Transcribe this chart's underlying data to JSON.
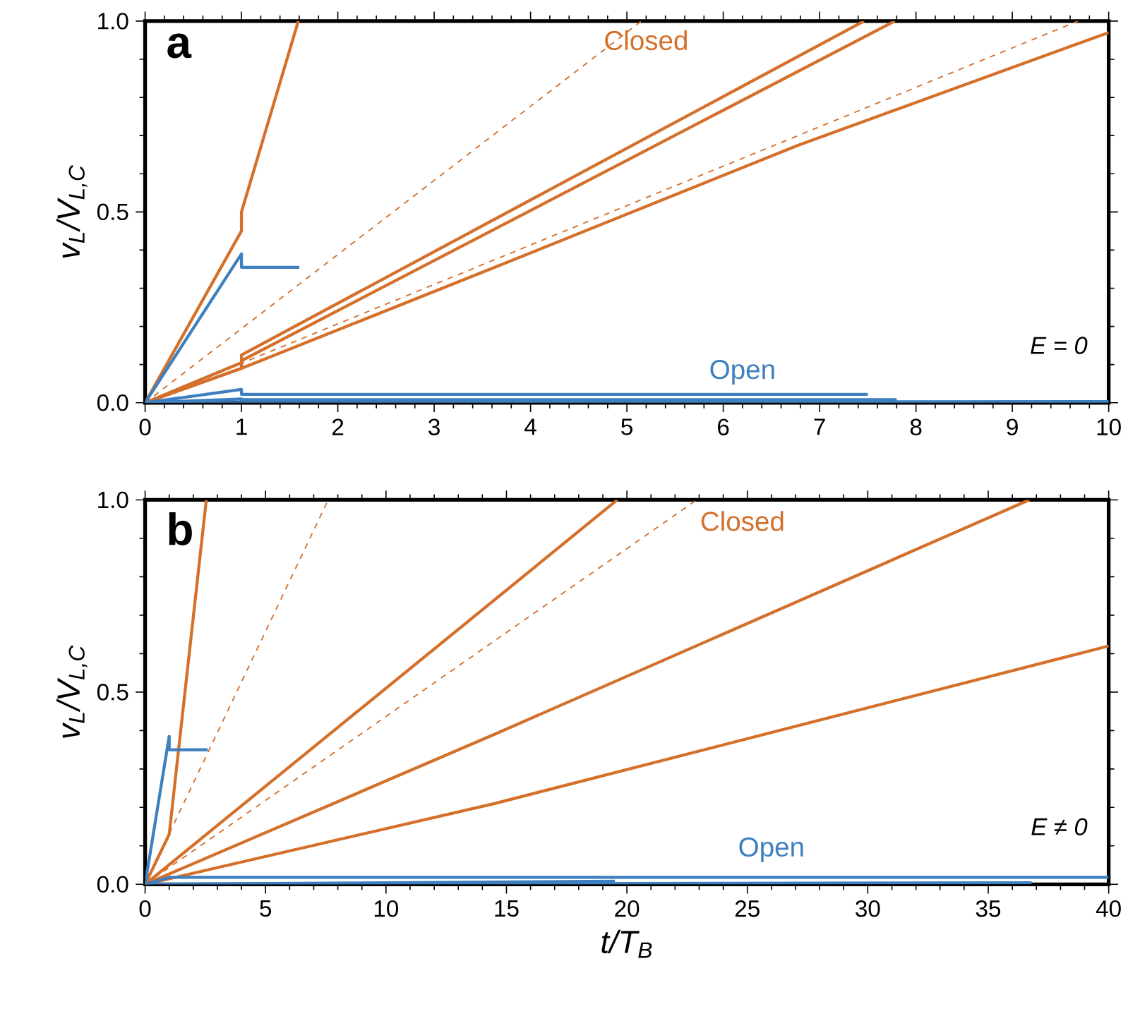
{
  "chart_data": [
    {
      "type": "line",
      "ylabel": "v$_{L}$/V$_{L,C}$",
      "annotations": [
        "a",
        "E = 0"
      ],
      "xlim": [
        0,
        10
      ],
      "ylim": [
        0,
        1
      ],
      "xticks": [
        0,
        1,
        2,
        3,
        4,
        5,
        6,
        7,
        8,
        9,
        10
      ],
      "yticks": [
        {
          "value": 0,
          "label": "0.0"
        },
        {
          "value": 0.5,
          "label": "0.5"
        },
        {
          "value": 1,
          "label": "1.0"
        }
      ],
      "marker": "none",
      "series": [
        {
          "name": "Closed",
          "color": "#d4702a",
          "line_style": "solid",
          "x": [
            0,
            1,
            1,
            1.59
          ],
          "values": [
            0,
            0.45,
            0.5,
            1
          ]
        },
        {
          "color": "#d4702a",
          "line_style": "dashed",
          "x": [
            0,
            5.15
          ],
          "values": [
            0,
            1
          ]
        },
        {
          "color": "#d4702a",
          "line_style": "solid",
          "x": [
            0,
            1,
            1,
            7.46
          ],
          "values": [
            0,
            0.105,
            0.125,
            1
          ]
        },
        {
          "color": "#d4702a",
          "line_style": "solid",
          "x": [
            0,
            1,
            1,
            7.78
          ],
          "values": [
            0,
            0.09,
            0.11,
            1
          ]
        },
        {
          "color": "#d4702a",
          "line_style": "dashed",
          "x": [
            0,
            9.68
          ],
          "values": [
            0,
            1
          ]
        },
        {
          "color": "#d4702a",
          "line_style": "solid",
          "x": [
            0,
            1,
            3.68,
            6.78,
            10
          ],
          "values": [
            0,
            0.09,
            0.36,
            0.675,
            0.97
          ]
        },
        {
          "name": "Open",
          "color": "#3d7fbf",
          "line_style": "solid",
          "x": [
            0,
            1,
            1,
            1.6
          ],
          "values": [
            0,
            0.39,
            0.355,
            0.355
          ]
        },
        {
          "color": "#3d7fbf",
          "line_style": "solid",
          "x": [
            0,
            1,
            1,
            7.5
          ],
          "values": [
            0,
            0.035,
            0.022,
            0.022
          ]
        },
        {
          "color": "#3d7fbf",
          "line_style": "solid",
          "x": [
            0,
            1,
            1,
            7.8
          ],
          "values": [
            0,
            0.01,
            0.008,
            0.008
          ]
        },
        {
          "color": "#3d7fbf",
          "line_style": "solid",
          "x": [
            0,
            10
          ],
          "values": [
            0,
            0.003
          ]
        }
      ]
    },
    {
      "type": "line",
      "xlabel": "t/T$_{B}$",
      "ylabel": "v$_{L}$/V$_{L,C}$",
      "annotations": [
        "b",
        "E ≠ 0"
      ],
      "xlim": [
        0,
        40
      ],
      "ylim": [
        0,
        1
      ],
      "xticks": [
        0,
        5,
        10,
        15,
        20,
        25,
        30,
        35,
        40
      ],
      "yticks": [
        {
          "value": 0,
          "label": "0.0"
        },
        {
          "value": 0.5,
          "label": "0.5"
        },
        {
          "value": 1,
          "label": "1.0"
        }
      ],
      "marker": "none",
      "series": [
        {
          "name": "Closed",
          "color": "#d4702a",
          "line_style": "solid",
          "x": [
            0,
            1,
            2.54
          ],
          "values": [
            0,
            0.13,
            1
          ]
        },
        {
          "color": "#d4702a",
          "line_style": "dashed",
          "x": [
            0,
            7.6
          ],
          "values": [
            0,
            1
          ]
        },
        {
          "color": "#d4702a",
          "line_style": "solid",
          "x": [
            0,
            19.6
          ],
          "values": [
            0,
            1
          ]
        },
        {
          "color": "#d4702a",
          "line_style": "dashed",
          "x": [
            0,
            22.9
          ],
          "values": [
            0,
            1
          ]
        },
        {
          "color": "#d4702a",
          "line_style": "solid",
          "x": [
            0,
            14.5,
            36.7
          ],
          "values": [
            0,
            0.39,
            1
          ]
        },
        {
          "color": "#d4702a",
          "line_style": "solid",
          "x": [
            0,
            14.5,
            40
          ],
          "values": [
            0,
            0.21,
            0.62
          ]
        },
        {
          "name": "Open",
          "color": "#3d7fbf",
          "line_style": "solid",
          "x": [
            0,
            1,
            1,
            2.6
          ],
          "values": [
            0,
            0.385,
            0.35,
            0.35
          ]
        },
        {
          "color": "#3d7fbf",
          "line_style": "solid",
          "x": [
            0,
            1,
            40
          ],
          "values": [
            0,
            0.018,
            0.018
          ]
        },
        {
          "color": "#3d7fbf",
          "line_style": "solid",
          "x": [
            0,
            19.5
          ],
          "values": [
            0,
            0.008
          ]
        },
        {
          "color": "#3d7fbf",
          "line_style": "solid",
          "x": [
            0,
            36.8
          ],
          "values": [
            0,
            0.004
          ]
        }
      ]
    }
  ]
}
